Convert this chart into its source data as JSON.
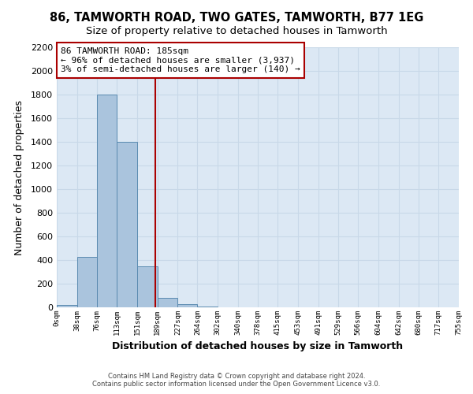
{
  "title": "86, TAMWORTH ROAD, TWO GATES, TAMWORTH, B77 1EG",
  "subtitle": "Size of property relative to detached houses in Tamworth",
  "xlabel": "Distribution of detached houses by size in Tamworth",
  "ylabel": "Number of detached properties",
  "bar_edges": [
    0,
    38,
    76,
    113,
    151,
    189,
    227,
    264,
    302,
    340,
    378,
    415,
    453,
    491,
    529,
    566,
    604,
    642,
    680,
    717,
    755
  ],
  "bar_heights": [
    20,
    430,
    1800,
    1400,
    350,
    80,
    30,
    5,
    0,
    0,
    0,
    0,
    0,
    0,
    0,
    0,
    0,
    0,
    0,
    0
  ],
  "bar_color": "#aac4dd",
  "bar_edgecolor": "#5a8ab0",
  "vline_x": 185,
  "vline_color": "#aa0000",
  "ylim": [
    0,
    2200
  ],
  "yticks": [
    0,
    200,
    400,
    600,
    800,
    1000,
    1200,
    1400,
    1600,
    1800,
    2000,
    2200
  ],
  "xtick_labels": [
    "0sqm",
    "38sqm",
    "76sqm",
    "113sqm",
    "151sqm",
    "189sqm",
    "227sqm",
    "264sqm",
    "302sqm",
    "340sqm",
    "378sqm",
    "415sqm",
    "453sqm",
    "491sqm",
    "529sqm",
    "566sqm",
    "604sqm",
    "642sqm",
    "680sqm",
    "717sqm",
    "755sqm"
  ],
  "annotation_line1": "86 TAMWORTH ROAD: 185sqm",
  "annotation_line2": "← 96% of detached houses are smaller (3,937)",
  "annotation_line3": "3% of semi-detached houses are larger (140) →",
  "footer_line1": "Contains HM Land Registry data © Crown copyright and database right 2024.",
  "footer_line2": "Contains public sector information licensed under the Open Government Licence v3.0.",
  "grid_color": "#c8d8e8",
  "background_color": "#dce8f4",
  "title_fontsize": 10.5,
  "subtitle_fontsize": 9.5,
  "ylabel_fontsize": 9,
  "xlabel_fontsize": 9
}
